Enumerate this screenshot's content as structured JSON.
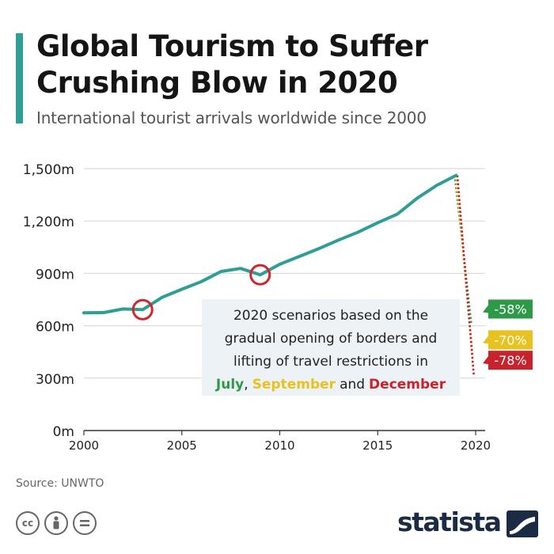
{
  "header": {
    "title": "Global Tourism to Suffer\nCrushing Blow in 2020",
    "subtitle": "International tourist arrivals worldwide since 2000"
  },
  "chart_data": {
    "type": "line",
    "x": [
      2000,
      2001,
      2002,
      2003,
      2004,
      2005,
      2006,
      2007,
      2008,
      2009,
      2010,
      2011,
      2012,
      2013,
      2014,
      2015,
      2016,
      2017,
      2018,
      2019
    ],
    "series": [
      {
        "values": [
          674,
          675,
          696,
          692,
          763,
          809,
          853,
          911,
          928,
          892,
          952,
          997,
          1042,
          1091,
          1136,
          1190,
          1239,
          1329,
          1403,
          1461
        ]
      }
    ],
    "scenarios": [
      {
        "month": "July",
        "label": "-58%",
        "value": 614,
        "color": "#2e9a47"
      },
      {
        "month": "September",
        "label": "-70%",
        "value": 438,
        "color": "#e8c21e"
      },
      {
        "month": "December",
        "label": "-78%",
        "value": 321,
        "color": "#c8232c"
      }
    ],
    "highlighted_years": [
      2003,
      2009
    ],
    "x_ticks": [
      "2000",
      "2005",
      "2010",
      "2015",
      "2020"
    ],
    "y_ticks": [
      "0m",
      "300m",
      "600m",
      "900m",
      "1,200m",
      "1,500m"
    ],
    "ylim": [
      0,
      1500
    ],
    "xlim": [
      2000,
      2020
    ],
    "grid": true,
    "line_color": "#2f9e96",
    "annotation": {
      "lines": [
        "2020 scenarios based on the",
        "gradual opening of borders and",
        "lifting of travel restrictions in"
      ],
      "july": "July",
      "comma": ",",
      "september": "September",
      "and": "and",
      "december": "December"
    }
  },
  "footer": {
    "source": "Source: UNWTO",
    "license_icons": [
      "cc-icon",
      "attribution-icon",
      "no-derivatives-icon"
    ],
    "brand": "statista"
  }
}
